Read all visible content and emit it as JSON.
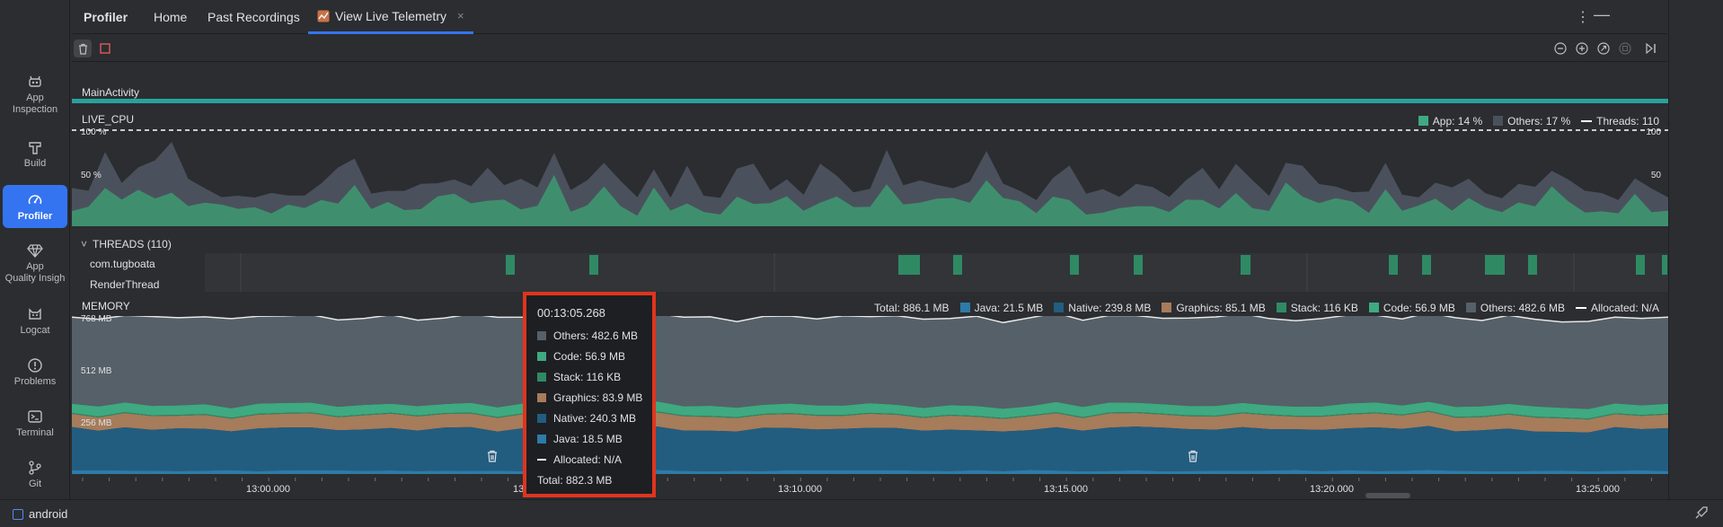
{
  "tool_strip": {
    "items": [
      {
        "label_1": "App",
        "label_2": "Inspection"
      },
      {
        "label_1": "Build",
        "label_2": ""
      },
      {
        "label_1": "Profiler",
        "label_2": ""
      },
      {
        "label_1": "App",
        "label_2": "Quality Insigh"
      },
      {
        "label_1": "Logcat",
        "label_2": ""
      },
      {
        "label_1": "Problems",
        "label_2": ""
      },
      {
        "label_1": "Terminal",
        "label_2": ""
      },
      {
        "label_1": "Git",
        "label_2": ""
      }
    ],
    "active": "Profiler"
  },
  "tabs": [
    "Profiler",
    "Home",
    "Past Recordings",
    "View Live Telemetry"
  ],
  "tab_close": "×",
  "header_actions": {
    "more": "⋮",
    "minimize": "—"
  },
  "toolbar": {
    "left": [
      "trash-icon",
      "stop-record-icon"
    ],
    "right": [
      "zoom-out-icon",
      "zoom-in-icon",
      "reset-zoom-icon",
      "zoom-to-selection-icon",
      "go-live-icon"
    ]
  },
  "activity": {
    "label": "MainActivity"
  },
  "cpu": {
    "label": "LIVE_CPU",
    "legend": {
      "app": "App: 14 %",
      "others": "Others: 17 %",
      "threads": "Threads: 110"
    },
    "axis_left": {
      "top": "100 %",
      "mid": "50 %"
    },
    "axis_right": {
      "top": "100",
      "mid": "50"
    },
    "colors": {
      "app": "#3f8f6e",
      "others": "#4a515c"
    }
  },
  "threads": {
    "header": "THREADS (110)",
    "rows": [
      "com.tugboata",
      "RenderThread"
    ]
  },
  "memory": {
    "label": "MEMORY",
    "legend": {
      "total": "Total: 886.1 MB",
      "java": "Java: 21.5 MB",
      "native": "Native: 239.8 MB",
      "graphics": "Graphics: 85.1 MB",
      "stack": "Stack: 116 KB",
      "code": "Code: 56.9 MB",
      "others": "Others: 482.6 MB",
      "allocated": "Allocated: N/A"
    },
    "axis": {
      "top": "768 MB",
      "mid": "512 MB",
      "low": "256 MB"
    },
    "colors": {
      "java": "#2d7ba7",
      "native": "#225d80",
      "graphics": "#a67c5b",
      "stack": "#2f8a64",
      "code": "#3fa981",
      "others": "#566068"
    }
  },
  "time_axis": [
    "13:00.000",
    "13",
    "13:10.000",
    "13:15.000",
    "13:20.000",
    "13:25.000"
  ],
  "tooltip": {
    "time": "00:13:05.268",
    "rows": [
      {
        "label": "Others: 482.6 MB",
        "color": "#566068"
      },
      {
        "label": "Code: 56.9 MB",
        "color": "#3fa981"
      },
      {
        "label": "Stack: 116 KB",
        "color": "#2f8a64"
      },
      {
        "label": "Graphics: 83.9 MB",
        "color": "#a67c5b"
      },
      {
        "label": "Native: 240.3 MB",
        "color": "#225d80"
      },
      {
        "label": "Java: 18.5 MB",
        "color": "#2d7ba7"
      }
    ],
    "allocated": "Allocated: N/A",
    "total": "Total: 882.3 MB"
  },
  "status_bar": {
    "project": "android"
  }
}
